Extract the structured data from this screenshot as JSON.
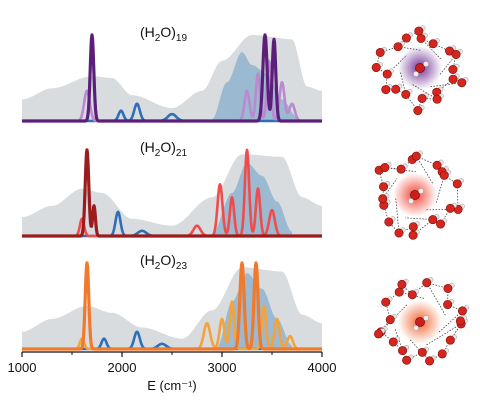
{
  "chart_data": {
    "type": "line",
    "xlabel": "E (cm⁻¹)",
    "xlim": [
      1000,
      4000
    ],
    "xticks": [
      {
        "value": 1000,
        "label": "1000"
      },
      {
        "value": 2000,
        "label": "2000"
      },
      {
        "value": 3000,
        "label": "3000"
      },
      {
        "value": 4000,
        "label": "4000"
      }
    ],
    "colors": {
      "grey_fill": "#d5d8dc",
      "blue_fill": "#8fb3cf",
      "blue_line": "#2e6fb5",
      "baseline": "#6a7cc8"
    },
    "panels": [
      {
        "label_base": "(H",
        "label_sub1": "2",
        "label_mid": "O)",
        "label_sub2": "19",
        "color_dark": "#5b1f7a",
        "color_light": "#b98ad0",
        "peaks_dark": [
          [
            1700,
            1.0,
            25
          ],
          [
            3430,
            1.0,
            30
          ],
          [
            3520,
            0.95,
            25
          ]
        ],
        "peaks_light": [
          [
            1650,
            0.35,
            40
          ],
          [
            3250,
            0.35,
            35
          ],
          [
            3360,
            0.55,
            30
          ],
          [
            3470,
            0.7,
            30
          ],
          [
            3600,
            0.45,
            35
          ],
          [
            3700,
            0.2,
            40
          ]
        ],
        "peaks_blue": [
          [
            1990,
            0.12,
            35
          ],
          [
            2150,
            0.2,
            40
          ],
          [
            2500,
            0.08,
            60
          ]
        ],
        "grey_shape": [
          [
            1000,
            0.25
          ],
          [
            1300,
            0.38
          ],
          [
            1700,
            0.52
          ],
          [
            1900,
            0.5
          ],
          [
            2100,
            0.3
          ],
          [
            2500,
            0.15
          ],
          [
            2800,
            0.35
          ],
          [
            3000,
            0.7
          ],
          [
            3300,
            1.0
          ],
          [
            3700,
            0.95
          ],
          [
            3850,
            0.4
          ],
          [
            4000,
            0.35
          ]
        ],
        "blue_shape": [
          [
            2900,
            0.02
          ],
          [
            3050,
            0.45
          ],
          [
            3200,
            0.8
          ],
          [
            3300,
            0.65
          ],
          [
            3450,
            0.55
          ],
          [
            3600,
            0.25
          ],
          [
            3750,
            0.05
          ]
        ]
      },
      {
        "label_base": "(H",
        "label_sub1": "2",
        "label_mid": "O)",
        "label_sub2": "21",
        "color_dark": "#9b1c1c",
        "color_light": "#ef4d4d",
        "peaks_dark": [
          [
            1650,
            1.0,
            25
          ],
          [
            1720,
            0.35,
            20
          ]
        ],
        "peaks_light": [
          [
            1600,
            0.2,
            30
          ],
          [
            2750,
            0.12,
            50
          ],
          [
            2980,
            0.6,
            35
          ],
          [
            3100,
            0.45,
            30
          ],
          [
            3250,
            1.0,
            30
          ],
          [
            3360,
            0.55,
            30
          ],
          [
            3500,
            0.3,
            40
          ]
        ],
        "peaks_blue": [
          [
            1960,
            0.28,
            35
          ],
          [
            2200,
            0.06,
            60
          ]
        ],
        "grey_shape": [
          [
            1000,
            0.22
          ],
          [
            1300,
            0.35
          ],
          [
            1600,
            0.55
          ],
          [
            1800,
            0.5
          ],
          [
            2100,
            0.2
          ],
          [
            2500,
            0.12
          ],
          [
            2900,
            0.45
          ],
          [
            3200,
            0.95
          ],
          [
            3600,
            0.92
          ],
          [
            3800,
            0.45
          ],
          [
            4000,
            0.35
          ]
        ],
        "blue_shape": [
          [
            2900,
            0.02
          ],
          [
            3100,
            0.5
          ],
          [
            3250,
            0.85
          ],
          [
            3400,
            0.7
          ],
          [
            3550,
            0.4
          ],
          [
            3700,
            0.05
          ]
        ]
      },
      {
        "label_base": "(H",
        "label_sub1": "2",
        "label_mid": "O)",
        "label_sub2": "23",
        "color_dark": "#f07a2b",
        "color_light": "#f3a33a",
        "peaks_dark": [
          [
            1650,
            1.0,
            25
          ],
          [
            3200,
            1.0,
            30
          ],
          [
            3340,
            1.0,
            28
          ]
        ],
        "peaks_light": [
          [
            1600,
            0.12,
            30
          ],
          [
            2850,
            0.3,
            45
          ],
          [
            3000,
            0.35,
            35
          ],
          [
            3100,
            0.55,
            30
          ],
          [
            3420,
            0.5,
            30
          ],
          [
            3550,
            0.35,
            35
          ],
          [
            3680,
            0.15,
            40
          ]
        ],
        "peaks_blue": [
          [
            1820,
            0.12,
            35
          ],
          [
            2150,
            0.2,
            40
          ],
          [
            2400,
            0.06,
            60
          ]
        ],
        "grey_shape": [
          [
            1000,
            0.2
          ],
          [
            1300,
            0.35
          ],
          [
            1650,
            0.5
          ],
          [
            1900,
            0.42
          ],
          [
            2200,
            0.25
          ],
          [
            2600,
            0.12
          ],
          [
            2900,
            0.45
          ],
          [
            3200,
            0.95
          ],
          [
            3600,
            0.9
          ],
          [
            3800,
            0.4
          ],
          [
            4000,
            0.3
          ]
        ],
        "blue_shape": [
          [
            2950,
            0.02
          ],
          [
            3100,
            0.55
          ],
          [
            3250,
            0.88
          ],
          [
            3400,
            0.7
          ],
          [
            3550,
            0.35
          ],
          [
            3700,
            0.04
          ]
        ]
      }
    ]
  }
}
